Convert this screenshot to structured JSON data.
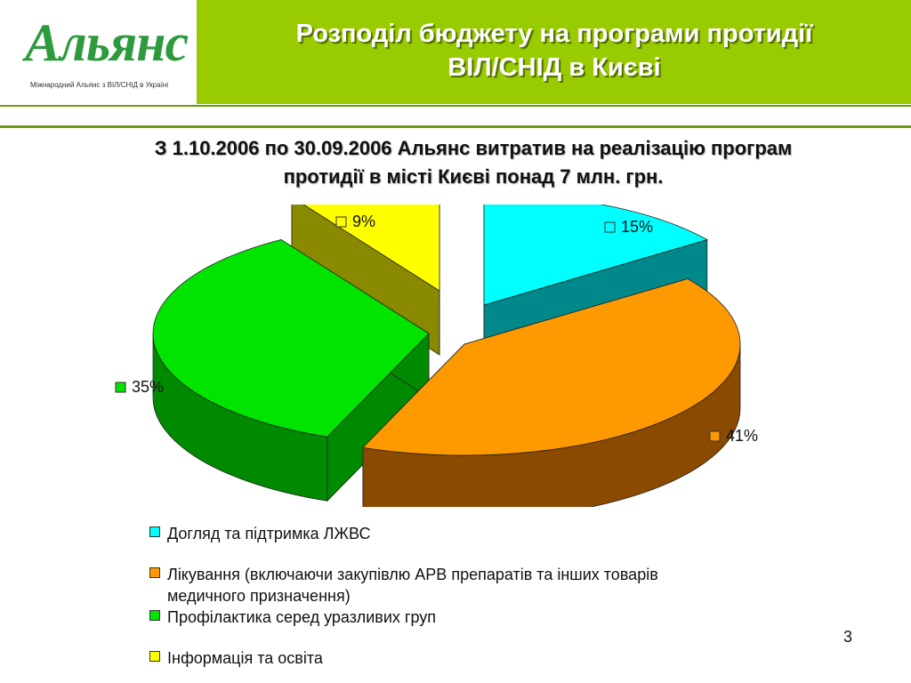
{
  "logo": {
    "text": "Альянс",
    "subtitle": "Міжнародний Альянс з ВІЛ/СНІД в Україні"
  },
  "slide": {
    "title_line1": "Розподіл бюджету на програми протидії",
    "title_line2": "ВІЛ/СНІД в Києві",
    "subtitle_line1": "З  1.10.2006 по  30.09.2006 Альянс витратив на реалізацію програм",
    "subtitle_line2": "протидії в місті  Києві  понад 7 млн. грн.",
    "page_number": "3"
  },
  "chart_data": {
    "type": "pie",
    "exploded": true,
    "three_d": true,
    "categories": [
      "Догляд та підтримка ЛЖВС",
      "Лікування (включаючи закупівлю АРВ препаратів та інших товарів медичного призначення)",
      "Профілактика серед уразливих груп",
      "Інформація та освіта"
    ],
    "legend_lines": [
      [
        "Догляд та підтримка ЛЖВС"
      ],
      [
        "Лікування (включаючи закупівлю АРВ препаратів та інших товарів",
        "медичного призначення)"
      ],
      [
        "Профілактика серед уразливих груп"
      ],
      [
        "Інформація та освіта"
      ]
    ],
    "values": [
      15,
      41,
      35,
      9
    ],
    "labels": [
      "15%",
      "41%",
      "35%",
      "9%"
    ],
    "colors": [
      "#00ffff",
      "#ff9900",
      "#00e400",
      "#ffff00"
    ],
    "side_colors": [
      "#00888a",
      "#8a4a00",
      "#008a00",
      "#8a8a00"
    ],
    "legend_position": "bottom"
  }
}
